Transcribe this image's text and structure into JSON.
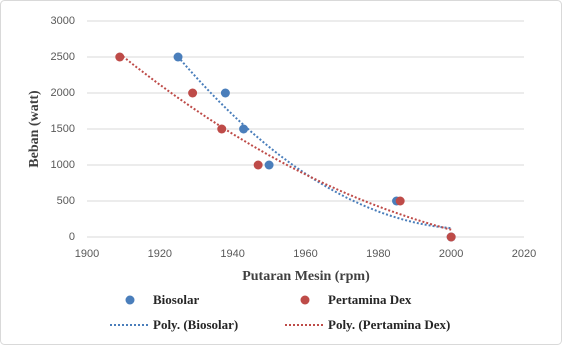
{
  "chart_data": {
    "type": "scatter",
    "xlabel": "Putaran Mesin (rpm)",
    "ylabel": "Beban (watt)",
    "xlim": [
      1900,
      2020
    ],
    "xticks": [
      1900,
      1920,
      1940,
      1960,
      1980,
      2000,
      2020
    ],
    "ylim": [
      0,
      3000
    ],
    "yticks": [
      0,
      500,
      1000,
      1500,
      2000,
      2500,
      3000
    ],
    "grid": true,
    "legend": "bottom",
    "series": [
      {
        "name": "Biosolar",
        "color": "#4a7ebb",
        "x": [
          1925,
          1938,
          1943,
          1950,
          1985,
          2000
        ],
        "values": [
          2500,
          2000,
          1500,
          1000,
          500,
          0
        ],
        "trendline": {
          "name": "Poly. (Biosolar)",
          "type": "poly",
          "order": 2
        }
      },
      {
        "name": "Pertamina Dex",
        "color": "#be4b48",
        "x": [
          1909,
          1929,
          1937,
          1947,
          1986,
          2000
        ],
        "values": [
          2500,
          2000,
          1500,
          1000,
          500,
          0
        ],
        "trendline": {
          "name": "Poly. (Pertamina Dex)",
          "type": "poly",
          "order": 2
        }
      }
    ]
  }
}
